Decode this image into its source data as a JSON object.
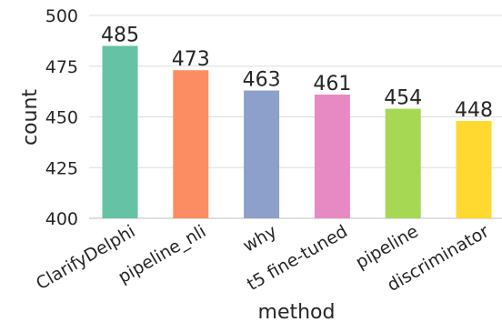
{
  "chart_data": {
    "type": "bar",
    "categories": [
      "ClarifyDelphi",
      "pipeline_nli",
      "why",
      "t5 fine-tuned",
      "pipeline",
      "discriminator"
    ],
    "values": [
      485,
      473,
      463,
      461,
      454,
      448
    ],
    "data_labels": [
      "485",
      "473",
      "463",
      "461",
      "454",
      "448"
    ],
    "colors": [
      "#66c2a5",
      "#fc8d62",
      "#8da0cb",
      "#e78ac3",
      "#a6d854",
      "#ffd92f"
    ],
    "xlabel": "method",
    "ylabel": "count",
    "ylim": [
      400,
      500
    ],
    "yticks": [
      400,
      425,
      450,
      475,
      500
    ],
    "ytick_labels": [
      "400",
      "425",
      "450",
      "475",
      "500"
    ],
    "grid": "horizontal",
    "legend": "none"
  }
}
